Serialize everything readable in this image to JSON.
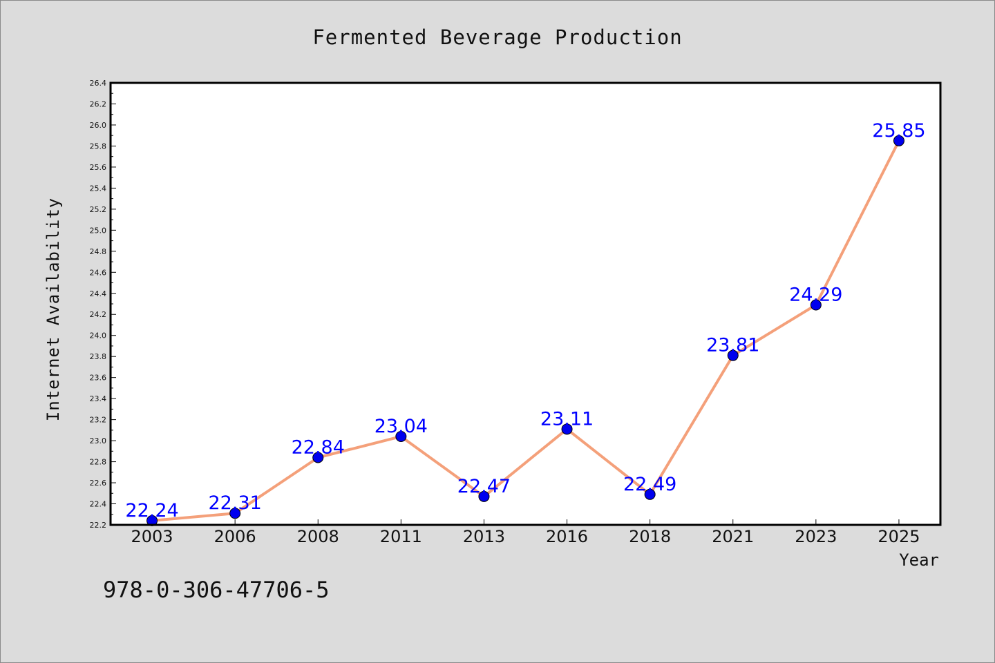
{
  "chart_data": {
    "type": "line",
    "title": "Fermented Beverage Production",
    "xlabel": "Year",
    "ylabel": "Internet Availability",
    "categories": [
      "2003",
      "2006",
      "2008",
      "2011",
      "2013",
      "2016",
      "2018",
      "2021",
      "2023",
      "2025"
    ],
    "series": [
      {
        "values": [
          22.24,
          22.31,
          22.84,
          23.04,
          22.47,
          23.11,
          22.49,
          23.81,
          24.29,
          25.85
        ],
        "labels": [
          "22.24",
          "22.31",
          "22.84",
          "23.04",
          "22.47",
          "23.11",
          "22.49",
          "23.81",
          "24.29",
          "25.85"
        ],
        "line_color": "#f4a07a",
        "marker_color": "#0000ee"
      }
    ],
    "ylim": [
      22.2,
      26.4
    ],
    "yticks": [
      "22.2",
      "22.4",
      "22.6",
      "22.8",
      "23.0",
      "23.2",
      "23.4",
      "23.6",
      "23.8",
      "24.0",
      "24.2",
      "24.4",
      "24.6",
      "24.8",
      "25.0",
      "25.2",
      "25.4",
      "25.6",
      "25.8",
      "26.0",
      "26.2",
      "26.4"
    ],
    "grid": false,
    "legend": "none",
    "label_color": "#0000ff",
    "background": "#dcdcdc",
    "plot_background": "#ffffff"
  },
  "footer": {
    "isbn": "978-0-306-47706-5"
  }
}
